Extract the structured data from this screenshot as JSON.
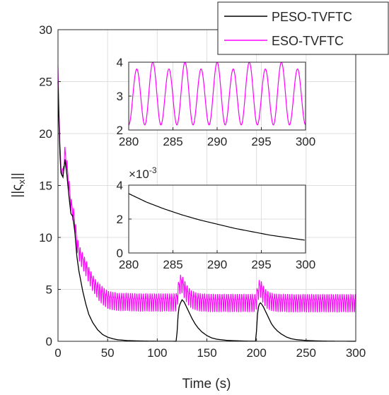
{
  "chart_data": [
    {
      "type": "line",
      "title": "",
      "xlabel": "Time (s)",
      "ylabel": "||ς_x||",
      "xlim": [
        0,
        300
      ],
      "ylim": [
        0,
        30
      ],
      "xticks": [
        0,
        50,
        100,
        150,
        200,
        250,
        300
      ],
      "yticks": [
        0,
        5,
        10,
        15,
        20,
        25,
        30
      ],
      "grid": true,
      "legend": "top-right",
      "series": [
        {
          "name": "PESO-TVFTC",
          "color": "#000000",
          "x": [
            0,
            1,
            2,
            3,
            5,
            7,
            9,
            11,
            13,
            15,
            17,
            19,
            21,
            23,
            25,
            28,
            31,
            35,
            40,
            45,
            50,
            55,
            60,
            70,
            80,
            90,
            100,
            110,
            119,
            120,
            121,
            122,
            123,
            124,
            125,
            127,
            129,
            131,
            133,
            135,
            138,
            141,
            145,
            150,
            155,
            160,
            170,
            180,
            190,
            199,
            200,
            201,
            202,
            203,
            204,
            205,
            207,
            209,
            211,
            213,
            215,
            218,
            221,
            225,
            230,
            235,
            240,
            250,
            260,
            270,
            280,
            290,
            300
          ],
          "y": [
            25,
            21,
            18,
            16.2,
            15.8,
            17.5,
            16,
            14,
            12.3,
            12,
            10.5,
            8.2,
            6.8,
            5.8,
            4.8,
            3.6,
            2.6,
            1.8,
            1.1,
            0.65,
            0.4,
            0.25,
            0.15,
            0.07,
            0.04,
            0.02,
            0.01,
            0.008,
            0.005,
            0.9,
            2.5,
            3.3,
            3.6,
            3.8,
            4.0,
            3.8,
            3.4,
            3.0,
            2.6,
            2.2,
            1.7,
            1.3,
            0.9,
            0.55,
            0.32,
            0.2,
            0.09,
            0.05,
            0.02,
            0.01,
            1.0,
            2.6,
            3.3,
            3.6,
            3.7,
            3.6,
            3.3,
            2.9,
            2.5,
            2.1,
            1.7,
            1.3,
            1.0,
            0.7,
            0.42,
            0.25,
            0.16,
            0.08,
            0.04,
            0.02,
            0.01,
            0.006,
            0.004
          ]
        },
        {
          "name": "ESO-TVFTC",
          "color": "#ff00ff",
          "x": [
            0,
            1,
            2,
            3,
            5,
            7,
            9,
            11,
            13,
            15,
            17,
            19,
            21,
            23,
            25,
            28,
            31,
            35,
            40,
            45,
            50,
            55,
            60,
            70,
            80,
            90,
            100,
            110,
            119,
            120,
            121,
            122,
            123,
            124,
            125,
            127,
            129,
            131,
            133,
            135,
            138,
            141,
            145,
            150,
            155,
            160,
            170,
            180,
            190,
            199,
            200,
            201,
            202,
            203,
            204,
            205,
            207,
            209,
            211,
            213,
            215,
            218,
            221,
            225,
            230,
            235,
            240,
            250,
            260,
            270,
            280,
            290,
            300
          ],
          "y": [
            26.5,
            22,
            19,
            16.5,
            16.2,
            18.2,
            16.8,
            15,
            13.2,
            12.5,
            11.4,
            9.5,
            8.7,
            8.2,
            7.8,
            7.2,
            6.5,
            5.7,
            5,
            4.5,
            4.1,
            4,
            3.9,
            3.9,
            3.85,
            3.85,
            3.85,
            3.85,
            3.85,
            4.2,
            4.8,
            5.3,
            5.6,
            5.7,
            5.6,
            5.2,
            4.8,
            4.5,
            4.3,
            4.1,
            4.0,
            3.9,
            3.85,
            3.82,
            3.8,
            3.8,
            3.8,
            3.8,
            3.8,
            3.8,
            4.1,
            4.6,
            5.0,
            5.2,
            5.2,
            5.0,
            4.6,
            4.3,
            4.1,
            4.0,
            3.9,
            3.85,
            3.82,
            3.8,
            3.8,
            3.78,
            3.78,
            3.78,
            3.78,
            3.78,
            3.78,
            3.78,
            3.78
          ],
          "oscillation_amplitude": 1.3
        }
      ]
    },
    {
      "type": "line",
      "title": "",
      "xlim": [
        280,
        300
      ],
      "ylim": [
        2,
        4
      ],
      "xticks": [
        280,
        285,
        290,
        295,
        300
      ],
      "yticks": [
        2,
        3,
        4
      ],
      "grid": true,
      "series": [
        {
          "name": "ESO-TVFTC",
          "color": "#ff00ff",
          "center": 3.0,
          "amplitude_top_alternating": [
            3.8,
            4.0
          ],
          "bottom": 2.15,
          "cycles": 11
        }
      ]
    },
    {
      "type": "line",
      "title": "",
      "xlim": [
        280,
        300
      ],
      "ylim": [
        0,
        4
      ],
      "yscale_label": "×10^-3",
      "xticks": [
        280,
        285,
        290,
        295,
        300
      ],
      "yticks": [
        0,
        2,
        4
      ],
      "grid": true,
      "series": [
        {
          "name": "PESO-TVFTC",
          "color": "#000000",
          "x": [
            280,
            282,
            284,
            286,
            288,
            290,
            292,
            294,
            296,
            298,
            300
          ],
          "y": [
            3.5,
            3.0,
            2.6,
            2.25,
            1.95,
            1.7,
            1.45,
            1.25,
            1.05,
            0.9,
            0.75
          ]
        }
      ]
    }
  ],
  "legend": {
    "entries": [
      "PESO-TVFTC",
      "ESO-TVFTC"
    ]
  },
  "inset_exponent": {
    "base": "×10",
    "power": "-3"
  },
  "main_axes": {
    "ylabel_parts": {
      "open": "||ς",
      "sub": "x",
      "close": "||"
    }
  }
}
